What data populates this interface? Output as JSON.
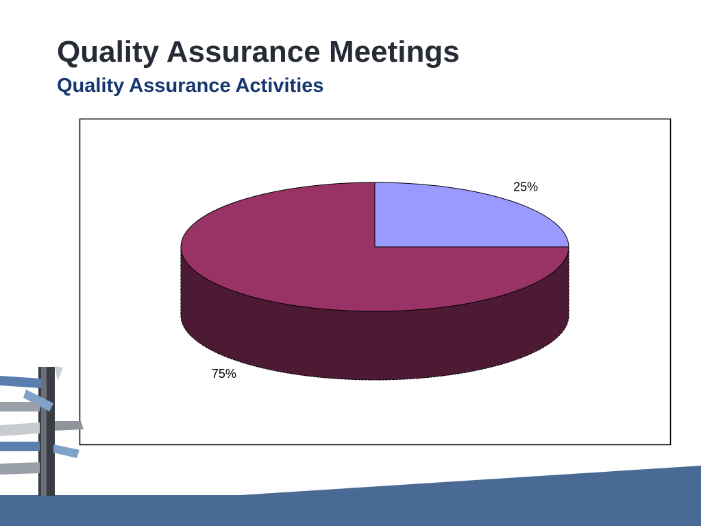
{
  "title": "Quality Assurance Meetings",
  "subtitle": "Quality Assurance Activities",
  "chart_data": {
    "type": "pie3d",
    "values": [
      25,
      75
    ],
    "value_labels": [
      "25%",
      "75%"
    ],
    "colors": [
      "#9999ff",
      "#993366"
    ],
    "start_angle": -90
  }
}
